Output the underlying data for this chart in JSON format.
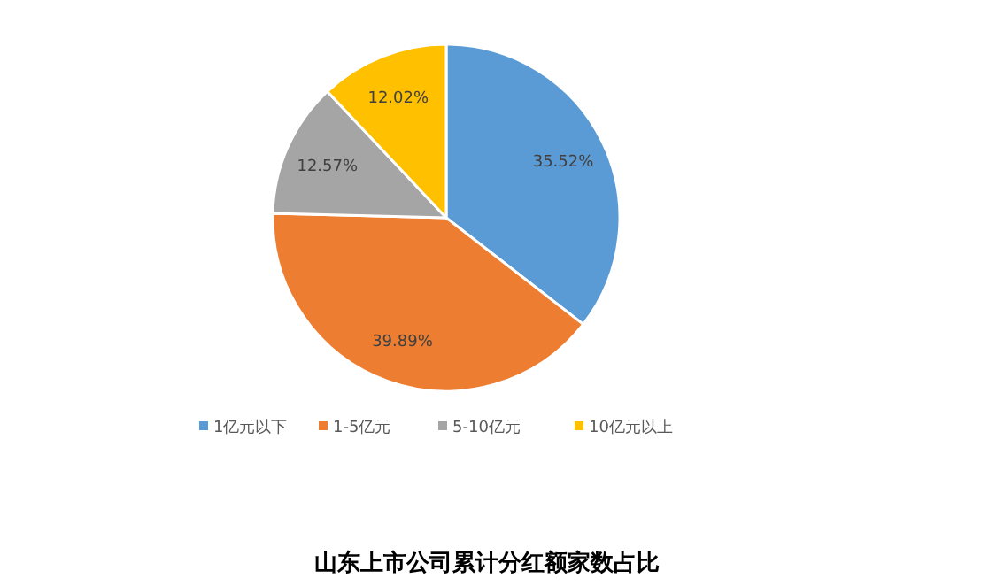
{
  "chart_data": {
    "type": "pie",
    "title": "山东上市公司累计分红额家数占比",
    "categories": [
      "1亿元以下",
      "1-5亿元",
      "5-10亿元",
      "10亿元以上"
    ],
    "values": [
      35.52,
      39.89,
      12.57,
      12.02
    ],
    "value_labels": [
      "35.52%",
      "39.89%",
      "12.57%",
      "12.02%"
    ],
    "colors": [
      "#5b9bd5",
      "#ed7d31",
      "#a5a5a5",
      "#ffc000"
    ],
    "legend": "bottom"
  }
}
